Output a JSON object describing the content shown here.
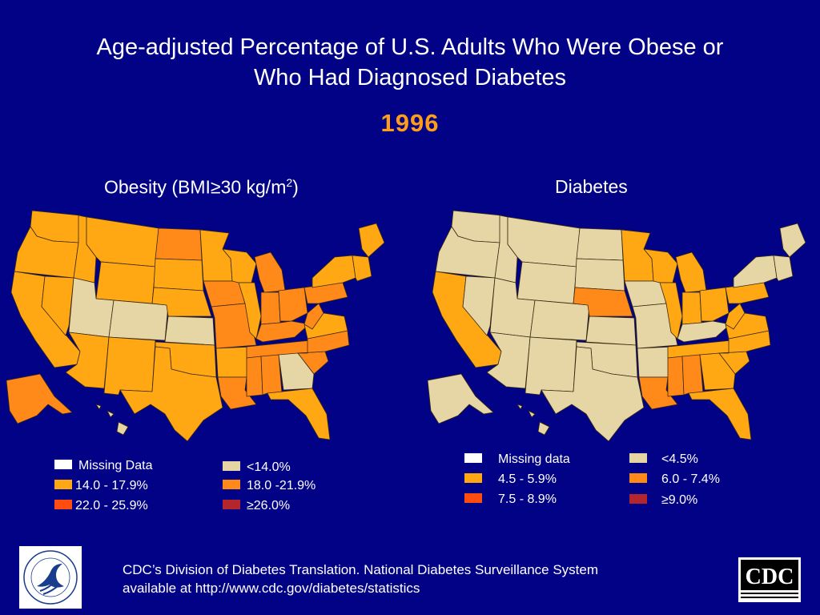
{
  "title_line1": "Age-adjusted Percentage of U.S. Adults Who Were Obese or",
  "title_line2": "Who Had Diagnosed Diabetes",
  "year": "1996",
  "obesity_panel": {
    "title_prefix": "Obesity (BMI≥30 kg/m",
    "title_sup": "2",
    "title_suffix": ")",
    "legend": [
      {
        "label": "Missing Data",
        "color": "#ffffff"
      },
      {
        "label": "<14.0%",
        "color": "#e6d6a6"
      },
      {
        "label": "14.0 - 17.9%",
        "color": "#ffa814"
      },
      {
        "label": "18.0 -21.9%",
        "color": "#ff8a1a"
      },
      {
        "label": "22.0 - 25.9%",
        "color": "#ff4d12"
      },
      {
        "label": "≥26.0%",
        "color": "#b3262e"
      }
    ]
  },
  "diabetes_panel": {
    "title": "Diabetes",
    "legend": [
      {
        "label": "Missing data",
        "color": "#ffffff"
      },
      {
        "label": "<4.5%",
        "color": "#e6d6a6"
      },
      {
        "label": "4.5 - 5.9%",
        "color": "#ffa814"
      },
      {
        "label": "6.0 - 7.4%",
        "color": "#ff8a1a"
      },
      {
        "label": "7.5 - 8.9%",
        "color": "#ff4d12"
      },
      {
        "label": "≥9.0%",
        "color": "#b3262e"
      }
    ]
  },
  "footer_line1": "CDC’s Division of Diabetes Translation.  National Diabetes Surveillance System",
  "footer_line2": "available at http://www.cdc.gov/diabetes/statistics",
  "logos": {
    "hhs": "hhs-seal",
    "cdc": "CDC"
  },
  "colors": {
    "background": "#020286",
    "year": "#ff9c1a",
    "light": "#e6d6a6",
    "mid": "#ffa814",
    "orange": "#ff8a1a",
    "red_orange": "#ff4d12",
    "dark_red": "#b3262e"
  },
  "map_data": {
    "obesity": {
      "WA": "mid",
      "OR": "mid",
      "CA": "mid",
      "NV": "mid",
      "ID": "mid",
      "MT": "mid",
      "WY": "mid",
      "UT": "light",
      "CO": "light",
      "AZ": "mid",
      "NM": "mid",
      "ND": "orange",
      "SD": "mid",
      "NE": "mid",
      "KS": "light",
      "OK": "mid",
      "TX": "mid",
      "MN": "mid",
      "IA": "orange",
      "MO": "orange",
      "AR": "mid",
      "LA": "orange",
      "WI": "mid",
      "IL": "mid",
      "MI": "orange",
      "IN": "orange",
      "OH": "orange",
      "KY": "orange",
      "TN": "orange",
      "MS": "orange",
      "AL": "orange",
      "GA": "light",
      "FL": "mid",
      "SC": "orange",
      "NC": "orange",
      "VA": "mid",
      "WV": "orange",
      "PA": "orange",
      "NY": "mid",
      "ME": "mid",
      "NE_states": "mid",
      "AK": "orange",
      "HI": "light"
    },
    "diabetes": {
      "WA": "light",
      "OR": "light",
      "CA": "mid",
      "NV": "light",
      "ID": "light",
      "MT": "light",
      "WY": "light",
      "UT": "light",
      "CO": "light",
      "AZ": "light",
      "NM": "light",
      "ND": "light",
      "SD": "light",
      "NE": "orange",
      "KS": "light",
      "OK": "light",
      "TX": "light",
      "MN": "mid",
      "IA": "light",
      "MO": "light",
      "AR": "light",
      "LA": "orange",
      "WI": "mid",
      "IL": "mid",
      "MI": "mid",
      "IN": "mid",
      "OH": "mid",
      "KY": "light",
      "TN": "mid",
      "MS": "orange",
      "AL": "orange",
      "GA": "mid",
      "FL": "mid",
      "SC": "mid",
      "NC": "mid",
      "VA": "mid",
      "WV": "mid",
      "PA": "mid",
      "NY": "light",
      "ME": "light",
      "NE_states": "light",
      "AK": "light",
      "HI": "light"
    }
  }
}
